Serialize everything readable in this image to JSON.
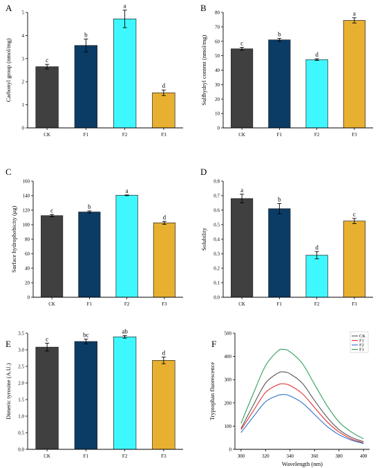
{
  "colors": {
    "CK": "#404040",
    "F1": "#0b3c66",
    "F2": "#3ff8ff",
    "F3": "#e8b030",
    "line_CK": "#555555",
    "line_F1": "#e23030",
    "line_F2": "#2f6fc9",
    "line_F3": "#2f9e5a"
  },
  "chart_data": [
    {
      "panel": "A",
      "type": "bar",
      "categories": [
        "CK",
        "F1",
        "F2",
        "F3"
      ],
      "values": [
        2.65,
        3.57,
        4.72,
        1.52
      ],
      "errors": [
        0.1,
        0.28,
        0.38,
        0.12
      ],
      "labels": [
        "c",
        "b",
        "a",
        "d"
      ],
      "ylabel": "Carbonyl group (nmol/mg)",
      "ylim": [
        0,
        5
      ],
      "yticks": [
        "0",
        "1",
        "2",
        "3",
        "4",
        "5"
      ],
      "ytick_values": [
        0,
        1,
        2,
        3,
        4,
        5
      ]
    },
    {
      "panel": "B",
      "type": "bar",
      "categories": [
        "CK",
        "F1",
        "F2",
        "F3"
      ],
      "values": [
        54.8,
        61.0,
        47.3,
        74.5
      ],
      "errors": [
        1.0,
        1.0,
        0.6,
        1.8
      ],
      "labels": [
        "c",
        "b",
        "d",
        "a"
      ],
      "ylabel": "Sulfhydryl content (nmol/mg)",
      "ylim": [
        0,
        80
      ],
      "yticks": [
        "0",
        "10",
        "20",
        "30",
        "40",
        "50",
        "60",
        "70",
        "80"
      ],
      "ytick_values": [
        0,
        10,
        20,
        30,
        40,
        50,
        60,
        70,
        80
      ]
    },
    {
      "panel": "C",
      "type": "bar",
      "categories": [
        "CK",
        "F1",
        "F2",
        "F3"
      ],
      "values": [
        112.5,
        117.5,
        140.5,
        102.5
      ],
      "errors": [
        1.5,
        1.5,
        0.5,
        2.0
      ],
      "labels": [
        "c",
        "b",
        "a",
        "d"
      ],
      "ylabel": "Surface hydrophobicity (μg)",
      "ylim": [
        0,
        160
      ],
      "yticks": [
        "0",
        "20",
        "40",
        "60",
        "80",
        "100",
        "120",
        "140",
        "160"
      ],
      "ytick_values": [
        0,
        20,
        40,
        60,
        80,
        100,
        120,
        140,
        160
      ]
    },
    {
      "panel": "D",
      "type": "bar",
      "categories": [
        "CK",
        "F1",
        "F2",
        "F3"
      ],
      "values": [
        0.68,
        0.61,
        0.29,
        0.525
      ],
      "errors": [
        0.03,
        0.035,
        0.025,
        0.018
      ],
      "labels": [
        "a",
        "b",
        "d",
        "c"
      ],
      "ylabel": "Solubility",
      "ylim": [
        0,
        0.8
      ],
      "yticks": [
        "0.0",
        "0.1",
        "0.2",
        "0.3",
        "0.4",
        "0.5",
        "0.6",
        "0.7",
        "0.8"
      ],
      "ytick_values": [
        0,
        0.1,
        0.2,
        0.3,
        0.4,
        0.5,
        0.6,
        0.7,
        0.8
      ]
    },
    {
      "panel": "E",
      "type": "bar",
      "categories": [
        "CK",
        "F1",
        "F2",
        "F3"
      ],
      "values": [
        3.08,
        3.25,
        3.39,
        2.68
      ],
      "errors": [
        0.12,
        0.07,
        0.04,
        0.1
      ],
      "labels": [
        "c",
        "bc",
        "ab",
        "d"
      ],
      "ylabel": "Dimeric tyrosine (A.U.)",
      "ylim": [
        0,
        3.5
      ],
      "yticks": [
        "0.0",
        "0.5",
        "1.0",
        "1.5",
        "2.0",
        "2.5",
        "3.0",
        "3.5"
      ],
      "ytick_values": [
        0,
        0.5,
        1.0,
        1.5,
        2.0,
        2.5,
        3.0,
        3.5
      ]
    },
    {
      "panel": "F",
      "type": "line",
      "xlabel": "Wavelength (nm)",
      "ylabel": "Tryptophan fluorescence",
      "xlim": [
        295,
        405
      ],
      "ylim": [
        0,
        500
      ],
      "xticks": [
        "300",
        "320",
        "340",
        "360",
        "380",
        "400"
      ],
      "xtick_values": [
        300,
        320,
        340,
        360,
        380,
        400
      ],
      "yticks": [
        "0",
        "100",
        "200",
        "300",
        "400",
        "500"
      ],
      "ytick_values": [
        0,
        100,
        200,
        300,
        400,
        500
      ],
      "legend_position": "top-right",
      "x": [
        300,
        310,
        320,
        330,
        335,
        340,
        350,
        360,
        370,
        380,
        390,
        400
      ],
      "series": [
        {
          "name": "CK",
          "values": [
            90,
            190,
            285,
            328,
            333,
            325,
            285,
            210,
            140,
            85,
            52,
            33
          ]
        },
        {
          "name": "F1",
          "values": [
            85,
            165,
            245,
            278,
            282,
            275,
            240,
            180,
            120,
            75,
            45,
            28
          ]
        },
        {
          "name": "F2",
          "values": [
            72,
            140,
            205,
            232,
            236,
            230,
            200,
            150,
            100,
            63,
            40,
            25
          ]
        },
        {
          "name": "F3",
          "values": [
            112,
            240,
            360,
            423,
            430,
            420,
            370,
            280,
            190,
            118,
            75,
            45
          ]
        }
      ]
    }
  ]
}
